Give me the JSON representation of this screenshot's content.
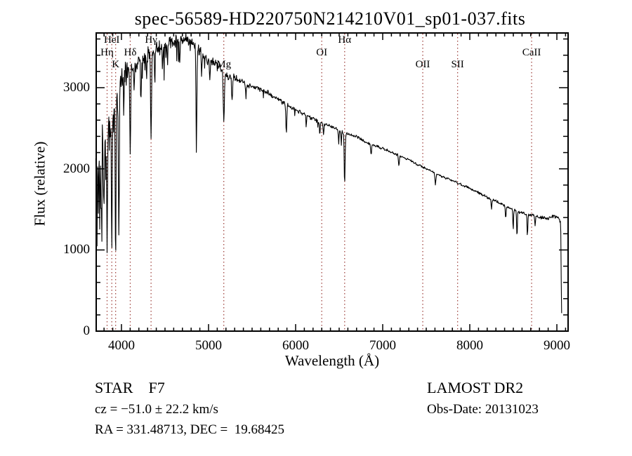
{
  "title": "spec-56589-HD220750N214210V01_sp01-037.fits",
  "chart_data": {
    "type": "line",
    "title": "spec-56589-HD220750N214210V01_sp01-037.fits",
    "xlabel": "Wavelength (Å)",
    "ylabel": "Flux (relative)",
    "flux_unit": "relative",
    "xlim": [
      3710,
      9129
    ],
    "ylim": [
      0,
      3674
    ],
    "xticks": [
      4000,
      5000,
      6000,
      7000,
      8000,
      9000
    ],
    "x_minor_step": 100,
    "yticks": [
      0,
      1000,
      2000,
      3000
    ],
    "y_minor_step": 200,
    "grid": false,
    "line_color": "#000000",
    "marker_line_color": "#9b3a35",
    "marked_lines": [
      {
        "label": "HeI",
        "wavelength": 3889,
        "row": 0
      },
      {
        "label": "Hη",
        "wavelength": 3835,
        "row": 1
      },
      {
        "label": "K",
        "wavelength": 3933,
        "row": 2
      },
      {
        "label": "Hδ",
        "wavelength": 4101,
        "row": 1
      },
      {
        "label": "Hγ",
        "wavelength": 4340,
        "row": 0
      },
      {
        "label": "Mg",
        "wavelength": 5175,
        "row": 2
      },
      {
        "label": "OI",
        "wavelength": 6300,
        "row": 1
      },
      {
        "label": "Hα",
        "wavelength": 6563,
        "row": 0
      },
      {
        "label": "OII",
        "wavelength": 7460,
        "row": 2
      },
      {
        "label": "SII",
        "wavelength": 7860,
        "row": 2
      },
      {
        "label": "CaII",
        "wavelength": 8710,
        "row": 1
      }
    ],
    "spectrum": {
      "start": 3705,
      "end": 9058,
      "step": 5,
      "seed": 20131023,
      "continuum": [
        [
          3700,
          2200
        ],
        [
          3760,
          2350
        ],
        [
          3820,
          2520
        ],
        [
          3880,
          2700
        ],
        [
          3940,
          2900
        ],
        [
          4000,
          3120
        ],
        [
          4100,
          3260
        ],
        [
          4200,
          3330
        ],
        [
          4300,
          3430
        ],
        [
          4400,
          3480
        ],
        [
          4500,
          3530
        ],
        [
          4600,
          3570
        ],
        [
          4700,
          3600
        ],
        [
          4760,
          3580
        ],
        [
          4820,
          3540
        ],
        [
          4900,
          3450
        ],
        [
          5000,
          3330
        ],
        [
          5100,
          3290
        ],
        [
          5200,
          3140
        ],
        [
          5300,
          3120
        ],
        [
          5400,
          3060
        ],
        [
          5500,
          3020
        ],
        [
          5600,
          2980
        ],
        [
          5700,
          2920
        ],
        [
          5800,
          2860
        ],
        [
          5900,
          2790
        ],
        [
          6000,
          2730
        ],
        [
          6100,
          2670
        ],
        [
          6200,
          2620
        ],
        [
          6300,
          2560
        ],
        [
          6400,
          2530
        ],
        [
          6500,
          2470
        ],
        [
          6600,
          2420
        ],
        [
          6700,
          2400
        ],
        [
          6800,
          2330
        ],
        [
          6900,
          2290
        ],
        [
          7000,
          2250
        ],
        [
          7100,
          2210
        ],
        [
          7200,
          2160
        ],
        [
          7300,
          2110
        ],
        [
          7400,
          2050
        ],
        [
          7500,
          2000
        ],
        [
          7600,
          1950
        ],
        [
          7700,
          1900
        ],
        [
          7800,
          1855
        ],
        [
          7900,
          1805
        ],
        [
          8000,
          1760
        ],
        [
          8100,
          1705
        ],
        [
          8200,
          1650
        ],
        [
          8300,
          1600
        ],
        [
          8400,
          1550
        ],
        [
          8500,
          1500
        ],
        [
          8560,
          1470
        ],
        [
          8620,
          1450
        ],
        [
          8700,
          1430
        ],
        [
          8800,
          1400
        ],
        [
          8900,
          1390
        ],
        [
          8960,
          1420
        ],
        [
          9010,
          1400
        ],
        [
          9044,
          1330
        ],
        [
          9052,
          420
        ],
        [
          9058,
          10
        ]
      ],
      "noise_profile": [
        [
          3700,
          300
        ],
        [
          3950,
          300
        ],
        [
          4020,
          150
        ],
        [
          4200,
          130
        ],
        [
          4600,
          100
        ],
        [
          4800,
          85
        ],
        [
          5000,
          75
        ],
        [
          5300,
          55
        ],
        [
          5600,
          42
        ],
        [
          5900,
          35
        ],
        [
          6200,
          30
        ],
        [
          6500,
          26
        ],
        [
          6800,
          22
        ],
        [
          7200,
          20
        ],
        [
          7600,
          18
        ],
        [
          8000,
          20
        ],
        [
          8400,
          22
        ],
        [
          8800,
          24
        ],
        [
          9040,
          26
        ],
        [
          9060,
          10
        ]
      ],
      "spike_zones": [
        [
          3700,
          4010,
          0.14,
          800
        ],
        [
          4010,
          4660,
          0.09,
          420
        ],
        [
          4660,
          5500,
          0.05,
          170
        ],
        [
          5500,
          6400,
          0.03,
          90
        ]
      ],
      "absorption_lines": [
        [
          3712,
          750,
          4
        ],
        [
          3722,
          600,
          3
        ],
        [
          3734,
          900,
          4
        ],
        [
          3750,
          850,
          4
        ],
        [
          3771,
          900,
          4
        ],
        [
          3798,
          1050,
          4.5
        ],
        [
          3820,
          500,
          3
        ],
        [
          3835,
          1500,
          5
        ],
        [
          3860,
          500,
          3
        ],
        [
          3889,
          1600,
          5
        ],
        [
          3912,
          400,
          3
        ],
        [
          3933,
          2050,
          5
        ],
        [
          3970,
          1950,
          5
        ],
        [
          4026,
          450,
          4
        ],
        [
          4101,
          1060,
          5
        ],
        [
          4144,
          380,
          4
        ],
        [
          4226,
          470,
          4
        ],
        [
          4290,
          350,
          4
        ],
        [
          4340,
          1160,
          5
        ],
        [
          4383,
          460,
          4
        ],
        [
          4471,
          280,
          4
        ],
        [
          4530,
          250,
          4
        ],
        [
          4668,
          230,
          4
        ],
        [
          4861,
          1280,
          5
        ],
        [
          4920,
          300,
          4
        ],
        [
          5015,
          250,
          4
        ],
        [
          5175,
          610,
          6
        ],
        [
          5270,
          300,
          5
        ],
        [
          5430,
          180,
          4
        ],
        [
          5893,
          360,
          5
        ],
        [
          6122,
          150,
          4
        ],
        [
          6278,
          170,
          4
        ],
        [
          6320,
          130,
          4
        ],
        [
          6495,
          170,
          4
        ],
        [
          6524,
          160,
          3.5
        ],
        [
          6563,
          640,
          5
        ],
        [
          6867,
          130,
          5
        ],
        [
          7186,
          120,
          5
        ],
        [
          7605,
          140,
          6
        ],
        [
          8250,
          130,
          4
        ],
        [
          8413,
          160,
          4
        ],
        [
          8498,
          250,
          4
        ],
        [
          8542,
          330,
          4
        ],
        [
          8662,
          290,
          4
        ],
        [
          8750,
          120,
          4
        ]
      ]
    }
  },
  "annotations": {
    "class_line": "STAR    F7",
    "cz_line": "cz = −51.0 ± 22.2 km/s",
    "radec_line": "RA = 331.48713, DEC =  19.68425",
    "survey": "LAMOST DR2",
    "obsdate": "Obs-Date: 20131023"
  }
}
